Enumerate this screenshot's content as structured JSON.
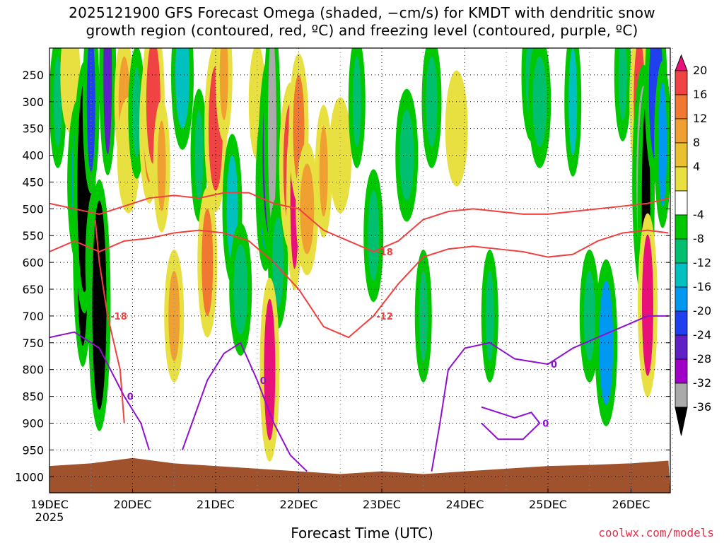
{
  "chart_data": {
    "type": "heatmap",
    "title_line1": "2025121900 GFS Forecast Omega (shaded, −cm/s) for KMDT with dendritic snow",
    "title_line2": "growth region (contoured, red, ºC) and freezing level (contoured, purple, ºC)",
    "xlabel": "Forecast Time (UTC)",
    "ylabel": "",
    "x_ticks": [
      "19DEC",
      "20DEC",
      "21DEC",
      "22DEC",
      "23DEC",
      "24DEC",
      "25DEC",
      "26DEC"
    ],
    "x_tick_sub": "2025",
    "y_ticks": [
      250,
      300,
      350,
      400,
      450,
      500,
      550,
      600,
      650,
      700,
      750,
      800,
      850,
      900,
      950,
      1000
    ],
    "y_range": [
      200,
      1000
    ],
    "x_range_days": [
      0,
      7.45
    ],
    "grid": true,
    "colorbar": {
      "labels": [
        20,
        16,
        12,
        8,
        4,
        -4,
        -8,
        -12,
        -16,
        -20,
        -24,
        -28,
        -32,
        -36
      ],
      "colors": [
        "#e8107a",
        "#f04444",
        "#f07830",
        "#f0a030",
        "#e8c030",
        "#e8e040",
        "#ffffff",
        "#00c800",
        "#00c070",
        "#00c0c0",
        "#0098f0",
        "#2040f0",
        "#6020c8",
        "#a000c8",
        "#aaaaaa",
        "#000000"
      ]
    },
    "red_contours": [
      {
        "label": "-18",
        "points": [
          [
            0,
            490
          ],
          [
            0.3,
            500
          ],
          [
            0.6,
            510
          ],
          [
            0.9,
            495
          ],
          [
            1.2,
            480
          ],
          [
            1.5,
            475
          ],
          [
            1.8,
            480
          ],
          [
            2.1,
            470
          ],
          [
            2.4,
            470
          ],
          [
            2.7,
            490
          ],
          [
            3.0,
            500
          ],
          [
            3.3,
            540
          ],
          [
            3.6,
            560
          ],
          [
            3.9,
            580
          ],
          [
            4.2,
            560
          ],
          [
            4.5,
            520
          ],
          [
            4.8,
            505
          ],
          [
            5.1,
            500
          ],
          [
            5.4,
            505
          ],
          [
            5.7,
            510
          ],
          [
            6.0,
            510
          ],
          [
            6.3,
            505
          ],
          [
            6.6,
            500
          ],
          [
            6.9,
            495
          ],
          [
            7.2,
            490
          ],
          [
            7.45,
            480
          ]
        ]
      },
      {
        "label": "-12",
        "points": [
          [
            0,
            580
          ],
          [
            0.3,
            560
          ],
          [
            0.6,
            580
          ],
          [
            0.9,
            560
          ],
          [
            1.2,
            555
          ],
          [
            1.5,
            545
          ],
          [
            1.8,
            540
          ],
          [
            2.1,
            545
          ],
          [
            2.4,
            560
          ],
          [
            2.7,
            600
          ],
          [
            3.0,
            650
          ],
          [
            3.3,
            720
          ],
          [
            3.6,
            740
          ],
          [
            3.9,
            700
          ],
          [
            4.2,
            640
          ],
          [
            4.5,
            590
          ],
          [
            4.8,
            575
          ],
          [
            5.1,
            570
          ],
          [
            5.4,
            575
          ],
          [
            5.7,
            580
          ],
          [
            6.0,
            590
          ],
          [
            6.3,
            585
          ],
          [
            6.6,
            560
          ],
          [
            6.9,
            545
          ],
          [
            7.2,
            540
          ],
          [
            7.45,
            545
          ]
        ]
      },
      {
        "label": "-18",
        "points": [
          [
            0.55,
            520
          ],
          [
            0.6,
            600
          ],
          [
            0.7,
            700
          ],
          [
            0.85,
            800
          ],
          [
            0.9,
            900
          ]
        ]
      }
    ],
    "purple_contours": [
      {
        "label": "0",
        "points": [
          [
            0,
            740
          ],
          [
            0.3,
            730
          ],
          [
            0.6,
            760
          ],
          [
            0.9,
            850
          ],
          [
            1.1,
            900
          ],
          [
            1.2,
            950
          ]
        ]
      },
      {
        "label": "0",
        "points": [
          [
            1.6,
            950
          ],
          [
            1.9,
            820
          ],
          [
            2.1,
            770
          ],
          [
            2.3,
            750
          ],
          [
            2.5,
            820
          ],
          [
            2.7,
            900
          ],
          [
            2.9,
            960
          ],
          [
            3.1,
            990
          ]
        ]
      },
      {
        "label": "0",
        "points": [
          [
            4.6,
            990
          ],
          [
            4.7,
            900
          ],
          [
            4.8,
            800
          ],
          [
            5.0,
            760
          ],
          [
            5.3,
            750
          ],
          [
            5.6,
            780
          ],
          [
            6.0,
            790
          ],
          [
            6.3,
            760
          ],
          [
            6.6,
            740
          ],
          [
            6.9,
            720
          ],
          [
            7.2,
            700
          ],
          [
            7.45,
            700
          ]
        ]
      },
      {
        "label": "0",
        "points": [
          [
            5.2,
            870
          ],
          [
            5.4,
            880
          ],
          [
            5.6,
            890
          ],
          [
            5.8,
            880
          ],
          [
            5.9,
            900
          ],
          [
            5.7,
            930
          ],
          [
            5.4,
            930
          ],
          [
            5.2,
            900
          ]
        ]
      }
    ],
    "omega_cells": [
      {
        "day": 0.1,
        "p": 300,
        "v": -8
      },
      {
        "day": 0.25,
        "p": 250,
        "v": 4
      },
      {
        "day": 0.35,
        "p": 450,
        "v": -16
      },
      {
        "day": 0.38,
        "p": 520,
        "v": -28
      },
      {
        "day": 0.4,
        "p": 560,
        "v": -36
      },
      {
        "day": 0.42,
        "p": 460,
        "v": -36
      },
      {
        "day": 0.5,
        "p": 300,
        "v": -20
      },
      {
        "day": 0.55,
        "p": 600,
        "v": -12
      },
      {
        "day": 0.6,
        "p": 680,
        "v": -36
      },
      {
        "day": 0.7,
        "p": 250,
        "v": -24
      },
      {
        "day": 0.9,
        "p": 300,
        "v": 8
      },
      {
        "day": 0.95,
        "p": 400,
        "v": 4
      },
      {
        "day": 1.05,
        "p": 320,
        "v": -8
      },
      {
        "day": 1.2,
        "p": 350,
        "v": 12
      },
      {
        "day": 1.25,
        "p": 300,
        "v": 16
      },
      {
        "day": 1.35,
        "p": 420,
        "v": 8
      },
      {
        "day": 1.5,
        "p": 700,
        "v": 8
      },
      {
        "day": 1.6,
        "p": 250,
        "v": -12
      },
      {
        "day": 1.8,
        "p": 400,
        "v": -8
      },
      {
        "day": 1.9,
        "p": 600,
        "v": 12
      },
      {
        "day": 2.0,
        "p": 350,
        "v": 16
      },
      {
        "day": 2.1,
        "p": 250,
        "v": 8
      },
      {
        "day": 2.2,
        "p": 500,
        "v": -12
      },
      {
        "day": 2.3,
        "p": 650,
        "v": -8
      },
      {
        "day": 2.5,
        "p": 300,
        "v": 4
      },
      {
        "day": 2.6,
        "p": 460,
        "v": -16
      },
      {
        "day": 2.65,
        "p": 400,
        "v": -24
      },
      {
        "day": 2.68,
        "p": 350,
        "v": -32
      },
      {
        "day": 2.75,
        "p": 600,
        "v": -8
      },
      {
        "day": 2.9,
        "p": 420,
        "v": 16
      },
      {
        "day": 2.95,
        "p": 480,
        "v": 20
      },
      {
        "day": 3.0,
        "p": 350,
        "v": 12
      },
      {
        "day": 3.1,
        "p": 500,
        "v": 8
      },
      {
        "day": 3.3,
        "p": 430,
        "v": 8
      },
      {
        "day": 2.65,
        "p": 800,
        "v": 20
      },
      {
        "day": 3.5,
        "p": 400,
        "v": 4
      },
      {
        "day": 3.7,
        "p": 300,
        "v": -8
      },
      {
        "day": 3.9,
        "p": 550,
        "v": -8
      },
      {
        "day": 4.3,
        "p": 400,
        "v": -8
      },
      {
        "day": 4.5,
        "p": 700,
        "v": -8
      },
      {
        "day": 4.6,
        "p": 300,
        "v": -8
      },
      {
        "day": 4.9,
        "p": 350,
        "v": 4
      },
      {
        "day": 5.3,
        "p": 700,
        "v": -8
      },
      {
        "day": 5.8,
        "p": 250,
        "v": -8
      },
      {
        "day": 5.9,
        "p": 300,
        "v": -8
      },
      {
        "day": 6.3,
        "p": 300,
        "v": -12
      },
      {
        "day": 6.5,
        "p": 700,
        "v": -8
      },
      {
        "day": 6.7,
        "p": 750,
        "v": -16
      },
      {
        "day": 6.9,
        "p": 250,
        "v": -8
      },
      {
        "day": 7.1,
        "p": 300,
        "v": 16
      },
      {
        "day": 7.15,
        "p": 450,
        "v": -32
      },
      {
        "day": 7.18,
        "p": 500,
        "v": -36
      },
      {
        "day": 7.2,
        "p": 680,
        "v": 20
      },
      {
        "day": 7.3,
        "p": 280,
        "v": -20
      },
      {
        "day": 7.38,
        "p": 380,
        "v": -16
      }
    ],
    "terrain": [
      [
        0,
        980
      ],
      [
        0.5,
        975
      ],
      [
        1.0,
        965
      ],
      [
        1.5,
        975
      ],
      [
        2.0,
        980
      ],
      [
        2.5,
        985
      ],
      [
        3.0,
        990
      ],
      [
        3.5,
        995
      ],
      [
        4.0,
        990
      ],
      [
        4.5,
        995
      ],
      [
        5.0,
        990
      ],
      [
        5.5,
        985
      ],
      [
        6.0,
        980
      ],
      [
        6.5,
        978
      ],
      [
        7.0,
        975
      ],
      [
        7.45,
        970
      ]
    ]
  },
  "credit": "coolwx.com/models"
}
